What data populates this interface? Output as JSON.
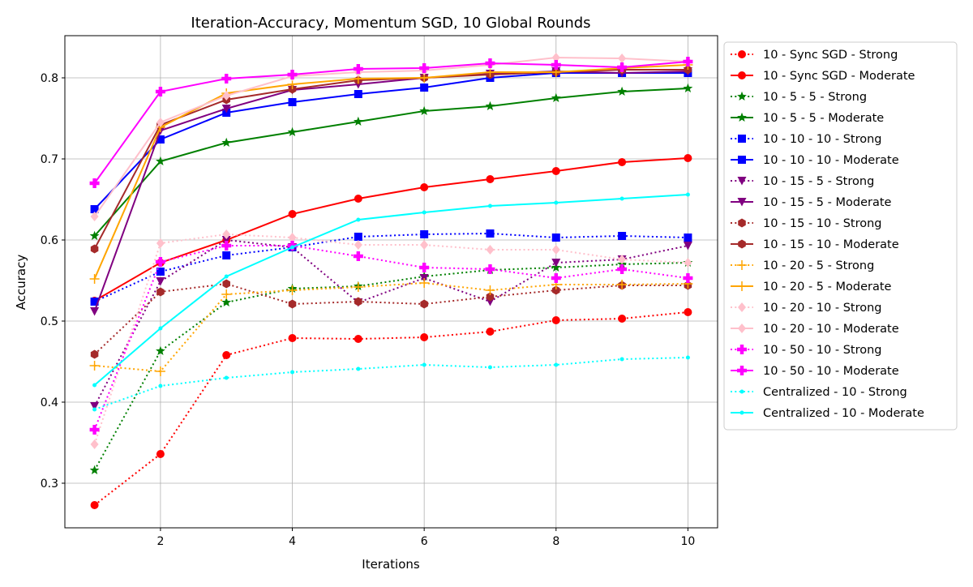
{
  "chart_data": {
    "type": "line",
    "title": "Iteration-Accuracy, Momentum SGD, 10 Global Rounds",
    "xlabel": "Iterations",
    "ylabel": "Accuracy",
    "xlim": [
      0.55,
      10.45
    ],
    "ylim": [
      0.245,
      0.852
    ],
    "xticks": [
      2,
      4,
      6,
      8,
      10
    ],
    "yticks": [
      0.3,
      0.4,
      0.5,
      0.6,
      0.7,
      0.8
    ],
    "ytick_labels": [
      "0.3",
      "0.4",
      "0.5",
      "0.6",
      "0.7",
      "0.8"
    ],
    "grid": true,
    "legend_placement": "outside-right",
    "x": [
      1,
      2,
      3,
      4,
      5,
      6,
      7,
      8,
      9,
      10
    ],
    "series": [
      {
        "name": "10 - Sync SGD - Strong",
        "color": "#ff0000",
        "style": "dotted",
        "marker": "circle",
        "values": [
          0.273,
          0.336,
          0.458,
          0.479,
          0.478,
          0.48,
          0.487,
          0.501,
          0.503,
          0.511
        ]
      },
      {
        "name": "10 - Sync SGD - Moderate",
        "color": "#ff0000",
        "style": "solid",
        "marker": "circle",
        "values": [
          0.525,
          0.572,
          0.6,
          0.632,
          0.651,
          0.665,
          0.675,
          0.685,
          0.696,
          0.701
        ]
      },
      {
        "name": "10 - 5 - 5 - Strong",
        "color": "#008000",
        "style": "dotted",
        "marker": "star",
        "values": [
          0.316,
          0.463,
          0.523,
          0.54,
          0.543,
          0.555,
          0.563,
          0.566,
          0.57,
          0.572
        ]
      },
      {
        "name": "10 - 5 - 5 - Moderate",
        "color": "#008000",
        "style": "solid",
        "marker": "star",
        "values": [
          0.605,
          0.697,
          0.72,
          0.733,
          0.746,
          0.759,
          0.765,
          0.775,
          0.783,
          0.787
        ]
      },
      {
        "name": "10 - 10 - 10 - Strong",
        "color": "#0000ff",
        "style": "dotted",
        "marker": "square",
        "values": [
          0.524,
          0.561,
          0.581,
          0.591,
          0.604,
          0.607,
          0.608,
          0.603,
          0.605,
          0.603
        ]
      },
      {
        "name": "10 - 10 - 10 - Moderate",
        "color": "#0000ff",
        "style": "solid",
        "marker": "square",
        "values": [
          0.638,
          0.724,
          0.757,
          0.77,
          0.78,
          0.788,
          0.8,
          0.806,
          0.806,
          0.806
        ]
      },
      {
        "name": "10 - 15 - 5 - Strong",
        "color": "#800080",
        "style": "dotted",
        "marker": "triangle-down",
        "values": [
          0.395,
          0.549,
          0.6,
          0.591,
          0.523,
          0.553,
          0.524,
          0.572,
          0.576,
          0.593
        ]
      },
      {
        "name": "10 - 15 - 5 - Moderate",
        "color": "#800080",
        "style": "solid",
        "marker": "triangle-down",
        "values": [
          0.512,
          0.735,
          0.762,
          0.785,
          0.792,
          0.8,
          0.805,
          0.808,
          0.806,
          0.808
        ]
      },
      {
        "name": "10 - 15 - 10 - Strong",
        "color": "#a52a2a",
        "style": "dotted",
        "marker": "hexagon",
        "values": [
          0.459,
          0.536,
          0.546,
          0.521,
          0.524,
          0.521,
          0.53,
          0.538,
          0.544,
          0.544
        ]
      },
      {
        "name": "10 - 15 - 10 - Moderate",
        "color": "#a52a2a",
        "style": "solid",
        "marker": "hexagon",
        "values": [
          0.589,
          0.742,
          0.773,
          0.786,
          0.797,
          0.8,
          0.804,
          0.807,
          0.81,
          0.81
        ]
      },
      {
        "name": "10 - 20 - 5 - Strong",
        "color": "#ffa500",
        "style": "dotted",
        "marker": "plus",
        "values": [
          0.445,
          0.438,
          0.533,
          0.538,
          0.542,
          0.547,
          0.538,
          0.545,
          0.545,
          0.546
        ]
      },
      {
        "name": "10 - 20 - 5 - Moderate",
        "color": "#ffa500",
        "style": "solid",
        "marker": "plus",
        "values": [
          0.552,
          0.739,
          0.781,
          0.792,
          0.799,
          0.8,
          0.807,
          0.807,
          0.812,
          0.816
        ]
      },
      {
        "name": "10 - 20 - 10 - Strong",
        "color": "#ffc0cb",
        "style": "dotted",
        "marker": "diamond",
        "values": [
          0.348,
          0.596,
          0.607,
          0.603,
          0.594,
          0.594,
          0.588,
          0.588,
          0.576,
          0.572
        ]
      },
      {
        "name": "10 - 20 - 10 - Moderate",
        "color": "#ffc0cb",
        "style": "solid",
        "marker": "diamond",
        "values": [
          0.629,
          0.745,
          0.778,
          0.802,
          0.807,
          0.809,
          0.816,
          0.825,
          0.824,
          0.82
        ]
      },
      {
        "name": "10 - 50 - 10 - Strong",
        "color": "#ff00ff",
        "style": "dotted",
        "marker": "plus-filled",
        "values": [
          0.366,
          0.573,
          0.593,
          0.593,
          0.58,
          0.566,
          0.564,
          0.553,
          0.564,
          0.553
        ]
      },
      {
        "name": "10 - 50 - 10 - Moderate",
        "color": "#ff00ff",
        "style": "solid",
        "marker": "plus-filled",
        "values": [
          0.67,
          0.783,
          0.799,
          0.804,
          0.811,
          0.812,
          0.818,
          0.816,
          0.813,
          0.82
        ]
      },
      {
        "name": "Centralized - 10 - Strong",
        "color": "#00ffff",
        "style": "dotted",
        "marker": "point",
        "values": [
          0.391,
          0.42,
          0.43,
          0.437,
          0.441,
          0.446,
          0.443,
          0.446,
          0.453,
          0.455
        ]
      },
      {
        "name": "Centralized - 10 - Moderate",
        "color": "#00ffff",
        "style": "solid",
        "marker": "point",
        "values": [
          0.421,
          0.491,
          0.555,
          0.591,
          0.625,
          0.634,
          0.642,
          0.646,
          0.651,
          0.656
        ]
      }
    ]
  }
}
